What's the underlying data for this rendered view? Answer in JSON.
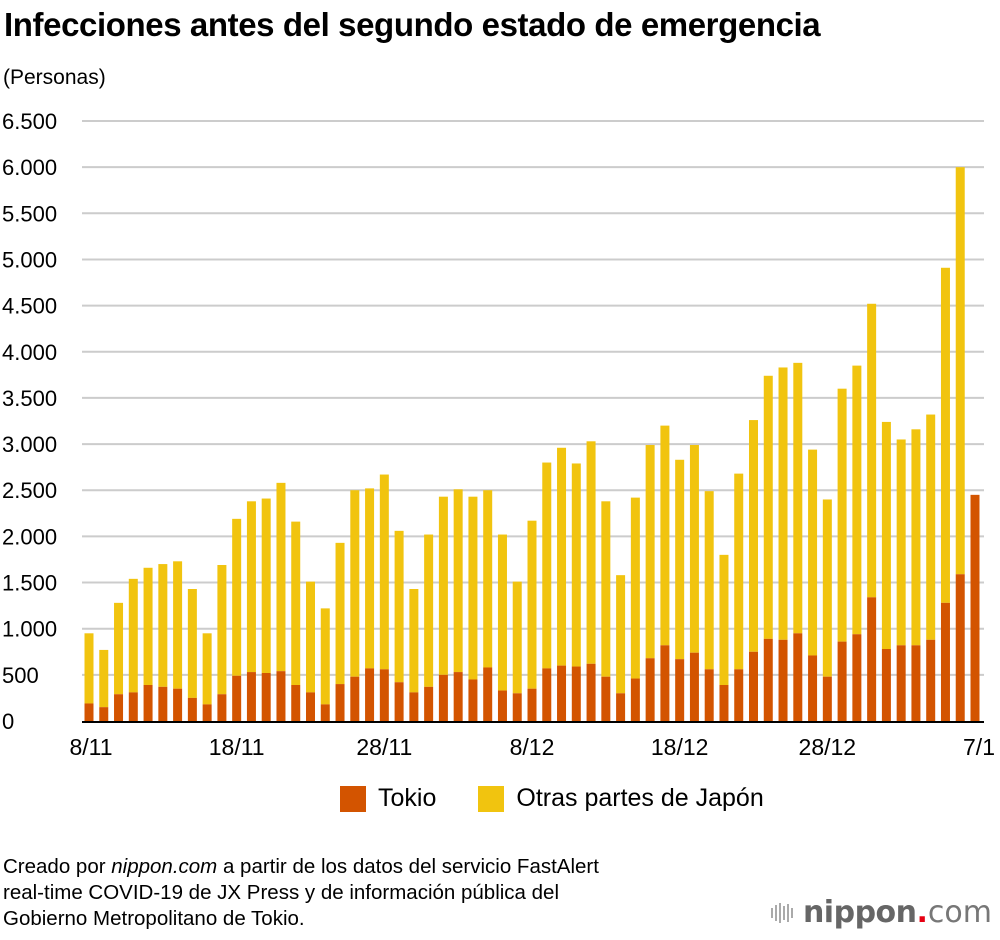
{
  "title": "Infecciones antes del segundo estado de emergencia",
  "unit_label": "(Personas)",
  "colors": {
    "tokio": "#D35400",
    "otras": "#F1C40F",
    "grid": "#cccccc",
    "axis": "#000000"
  },
  "legend": [
    {
      "label": "Tokio",
      "color": "#D35400"
    },
    {
      "label": "Otras partes de Japón",
      "color": "#F1C40F"
    }
  ],
  "footer": {
    "line1_pre": "Creado por ",
    "line1_italic": "nippon.com",
    "line1_post": " a partir de los datos del servicio FastAlert",
    "line2": "real-time COVID-19 de JX Press y de información pública del",
    "line3": "Gobierno Metropolitano de Tokio."
  },
  "logo": {
    "brand": "nippon",
    "dot": ".",
    "tld": "com"
  },
  "chart_data": {
    "type": "bar",
    "stacked": true,
    "title": "Infecciones antes del segundo estado de emergencia",
    "xlabel": "",
    "ylabel": "(Personas)",
    "ylim": [
      0,
      6500
    ],
    "yticks": [
      0,
      500,
      1000,
      1500,
      2000,
      2500,
      3000,
      3500,
      4000,
      4500,
      5000,
      5500,
      6000,
      6500
    ],
    "ytick_labels": [
      "0",
      "500",
      "1.000",
      "1.500",
      "2.000",
      "2.500",
      "3.000",
      "3.500",
      "4.000",
      "4.500",
      "5.000",
      "5.500",
      "6.000",
      "6.500"
    ],
    "xtick_labels": [
      {
        "index": 0,
        "label": "8/11"
      },
      {
        "index": 10,
        "label": "18/11"
      },
      {
        "index": 20,
        "label": "28/11"
      },
      {
        "index": 30,
        "label": "8/12"
      },
      {
        "index": 40,
        "label": "18/12"
      },
      {
        "index": 50,
        "label": "28/12"
      },
      {
        "index": 60,
        "label": "7/1"
      }
    ],
    "grid": true,
    "legend_position": "bottom-center",
    "categories": [
      "8/11",
      "9/11",
      "10/11",
      "11/11",
      "12/11",
      "13/11",
      "14/11",
      "15/11",
      "16/11",
      "17/11",
      "18/11",
      "19/11",
      "20/11",
      "21/11",
      "22/11",
      "23/11",
      "24/11",
      "25/11",
      "26/11",
      "27/11",
      "28/11",
      "29/11",
      "30/11",
      "1/12",
      "2/12",
      "3/12",
      "4/12",
      "5/12",
      "6/12",
      "7/12",
      "8/12",
      "9/12",
      "10/12",
      "11/12",
      "12/12",
      "13/12",
      "14/12",
      "15/12",
      "16/12",
      "17/12",
      "18/12",
      "19/12",
      "20/12",
      "21/12",
      "22/12",
      "23/12",
      "24/12",
      "25/12",
      "26/12",
      "27/12",
      "28/12",
      "29/12",
      "30/12",
      "31/12",
      "1/1",
      "2/1",
      "3/1",
      "4/1",
      "5/1",
      "6/1",
      "7/1"
    ],
    "series": [
      {
        "name": "Tokio",
        "values": [
          190,
          150,
          290,
          310,
          390,
          370,
          350,
          250,
          180,
          290,
          490,
          530,
          520,
          540,
          390,
          310,
          180,
          400,
          480,
          570,
          560,
          420,
          310,
          370,
          500,
          530,
          450,
          580,
          330,
          300,
          350,
          570,
          600,
          590,
          620,
          480,
          300,
          460,
          680,
          820,
          670,
          740,
          560,
          390,
          560,
          750,
          890,
          880,
          950,
          710,
          480,
          860,
          940,
          1340,
          780,
          820,
          820,
          880,
          1280,
          1590,
          2450
        ]
      },
      {
        "name": "Otras partes de Japón",
        "values": [
          760,
          620,
          990,
          1230,
          1270,
          1330,
          1380,
          1180,
          770,
          1400,
          1700,
          1850,
          1890,
          2040,
          1770,
          1200,
          1040,
          1530,
          2020,
          1950,
          2110,
          1640,
          1120,
          1650,
          1930,
          1980,
          1980,
          1920,
          1690,
          1210,
          1820,
          2230,
          2360,
          2200,
          2410,
          1900,
          1280,
          1960,
          2310,
          2380,
          2160,
          2250,
          1930,
          1410,
          2120,
          2510,
          2850,
          2950,
          2930,
          2230,
          1920,
          2740,
          2910,
          3180,
          2460,
          2230,
          2340,
          2440,
          3630,
          4410,
          0
        ]
      }
    ]
  }
}
